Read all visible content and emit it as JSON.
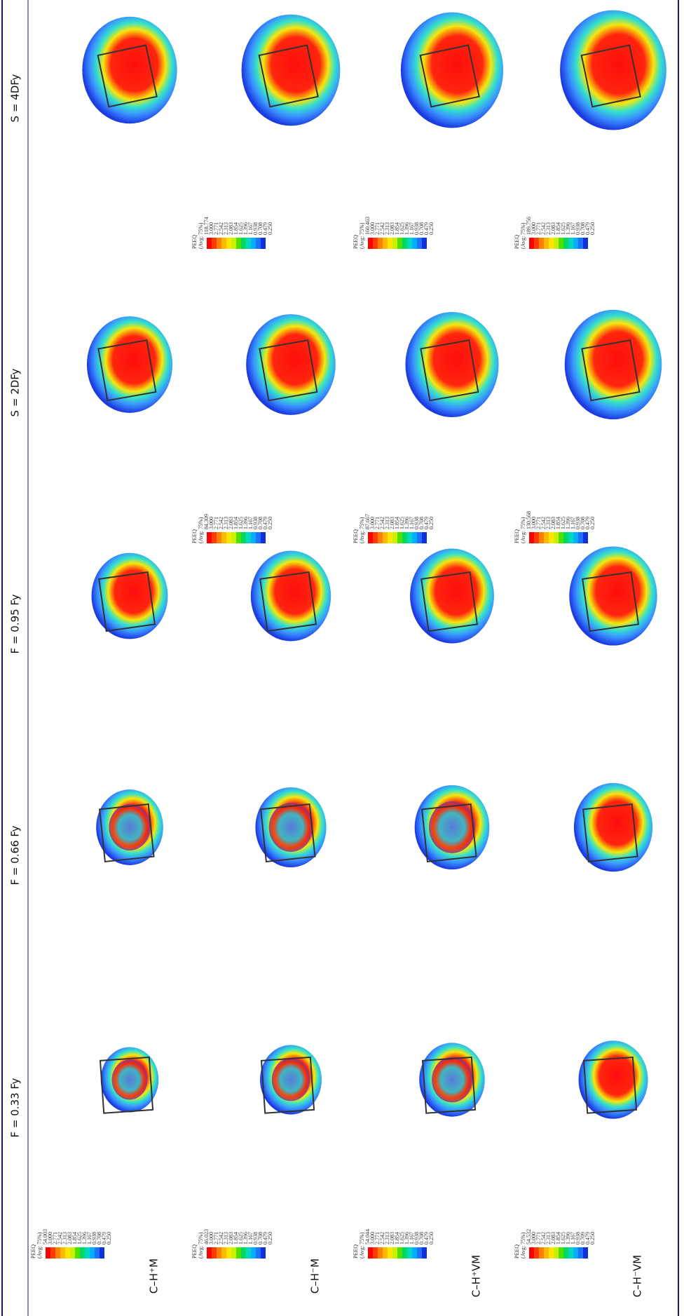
{
  "header": {
    "columns": [
      "F = 0.33 Fy",
      "F = 0.66 Fy",
      "F = 0.95 Fy",
      "S = 2DFy",
      "S = 4DFy"
    ]
  },
  "rows": [
    {
      "label": "C–H⁺M",
      "legends": [
        {
          "title": "PEEQ",
          "subtitle": "(Avg: 75%)",
          "labels": [
            "54.003",
            "3.000",
            "2.771",
            "2.542",
            "2.313",
            "2.083",
            "1.854",
            "1.625",
            "1.396",
            "1.167",
            "0.938",
            "0.708",
            "0.479",
            "0.250"
          ]
        },
        null,
        null,
        null,
        null
      ]
    },
    {
      "label": "C–H⁻M",
      "legends": [
        {
          "title": "PEEQ",
          "subtitle": "(Avg: 75%)",
          "labels": [
            "46.023",
            "3.000",
            "2.771",
            "2.542",
            "2.313",
            "2.083",
            "1.854",
            "1.625",
            "1.396",
            "1.167",
            "0.938",
            "0.708",
            "0.479",
            "0.250"
          ]
        },
        null,
        null,
        {
          "title": "PEEQ",
          "subtitle": "(Avg: 75%)",
          "labels": [
            "84.309",
            "3.000",
            "2.771",
            "2.542",
            "2.313",
            "2.083",
            "1.854",
            "1.625",
            "1.396",
            "1.167",
            "0.938",
            "0.708",
            "0.479",
            "0.250"
          ]
        },
        {
          "title": "PEEQ",
          "subtitle": "(Avg: 75%)",
          "labels": [
            "118.774",
            "3.000",
            "2.771",
            "2.542",
            "2.313",
            "2.083",
            "1.854",
            "1.625",
            "1.396",
            "1.167",
            "0.938",
            "0.708",
            "0.479",
            "0.250"
          ]
        }
      ]
    },
    {
      "label": "C–H⁺VM",
      "legends": [
        {
          "title": "PEEQ",
          "subtitle": "(Avg: 75%)",
          "labels": [
            "54.044",
            "3.000",
            "2.771",
            "2.542",
            "2.313",
            "2.083",
            "1.854",
            "1.625",
            "1.396",
            "1.167",
            "0.938",
            "0.708",
            "0.479",
            "0.250"
          ]
        },
        null,
        null,
        {
          "title": "PEEQ",
          "subtitle": "(Avg: 75%)",
          "labels": [
            "87.667",
            "3.000",
            "2.771",
            "2.542",
            "2.313",
            "2.083",
            "1.854",
            "1.625",
            "1.396",
            "1.167",
            "0.938",
            "0.708",
            "0.479",
            "0.250"
          ]
        },
        {
          "title": "PEEQ",
          "subtitle": "(Avg: 75%)",
          "labels": [
            "160.463",
            "3.000",
            "2.771",
            "2.542",
            "2.313",
            "2.083",
            "1.854",
            "1.625",
            "1.396",
            "1.167",
            "0.938",
            "0.708",
            "0.479",
            "0.250"
          ]
        }
      ]
    },
    {
      "label": "C–H⁻VM",
      "legends": [
        {
          "title": "PEEQ",
          "subtitle": "(Avg: 75%)",
          "labels": [
            "54.532",
            "3.000",
            "2.771",
            "2.542",
            "2.313",
            "2.083",
            "1.854",
            "1.625",
            "1.396",
            "1.167",
            "0.938",
            "0.709",
            "0.479",
            "0.250"
          ]
        },
        null,
        null,
        {
          "title": "PEEQ",
          "subtitle": "(Avg: 75%)",
          "labels": [
            "130.568",
            "3.000",
            "2.771",
            "2.542",
            "2.313",
            "2.083",
            "1.854",
            "1.625",
            "1.396",
            "1.167",
            "0.938",
            "0.708",
            "0.479",
            "0.250"
          ]
        },
        {
          "title": "PEEQ",
          "subtitle": "(Avg: 75%)",
          "labels": [
            "189.756",
            "3.000",
            "2.771",
            "2.542",
            "2.313",
            "2.083",
            "1.854",
            "1.625",
            "1.396",
            "1.167",
            "0.938",
            "0.708",
            "0.479",
            "0.250"
          ]
        }
      ]
    }
  ]
}
